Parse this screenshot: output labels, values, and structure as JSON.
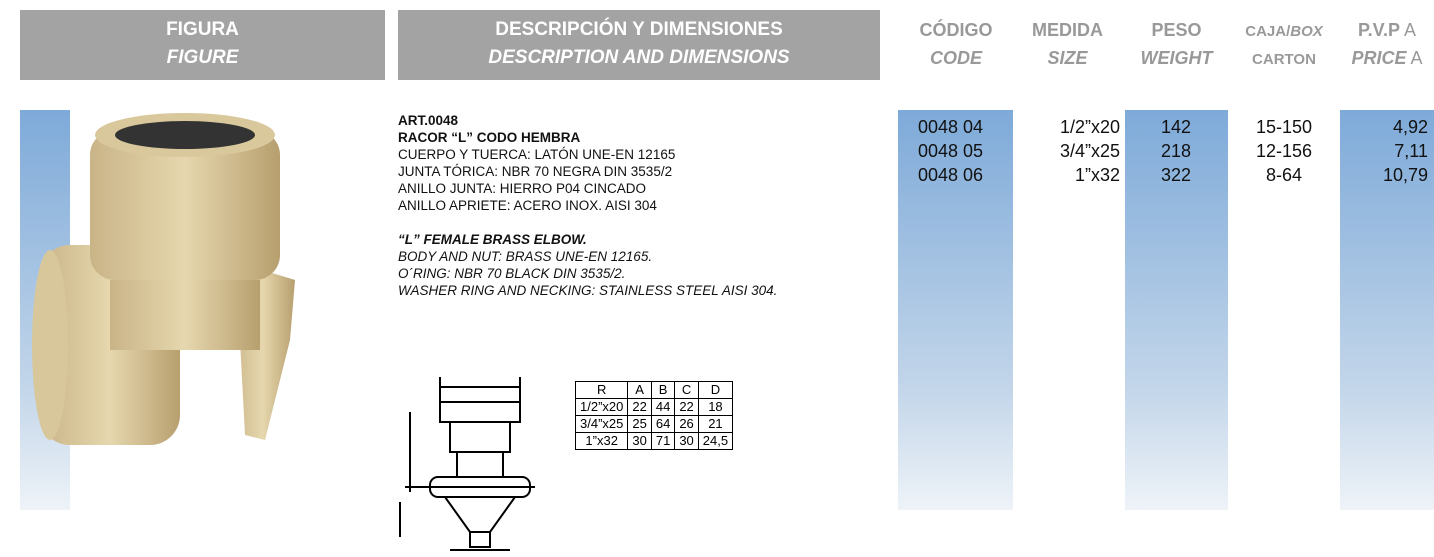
{
  "header": {
    "figure": {
      "es": "FIGURA",
      "en": "FIGURE"
    },
    "description": {
      "es": "DESCRIPCIÓN Y DIMENSIONES",
      "en": "DESCRIPTION AND DIMENSIONS"
    },
    "columns": [
      {
        "es": "CÓDIGO",
        "en": "CODE"
      },
      {
        "es": "MEDIDA",
        "en": "SIZE"
      },
      {
        "es": "PESO",
        "en": "WEIGHT"
      },
      {
        "es": "CAJA/",
        "es_italic": "BOX",
        "en": "CARTON"
      },
      {
        "es": "P.V.P",
        "es_mark": "A",
        "en": "PRICE",
        "en_mark": "A"
      }
    ]
  },
  "description": {
    "article": "ART.0048",
    "title": "RACOR “L” CODO HEMBRA",
    "lines": [
      "CUERPO Y TUERCA: LATÓN UNE-EN 12165",
      "JUNTA TÓRICA: NBR 70 NEGRA DIN 3535/2",
      "ANILLO JUNTA: HIERRO P04 CINCADO",
      "ANILLO APRIETE: ACERO INOX. AISI 304"
    ],
    "title_en": "“L” FEMALE BRASS ELBOW.",
    "lines_en": [
      "BODY AND NUT: BRASS UNE-EN 12165.",
      "O´RING: NBR 70 BLACK DIN 3535/2.",
      "WASHER RING AND NECKING: STAINLESS STEEL AISI 304."
    ]
  },
  "dimensions": {
    "header": [
      "R",
      "A",
      "B",
      "C",
      "D"
    ],
    "rows": [
      [
        "1/2”x20",
        "22",
        "44",
        "22",
        "18"
      ],
      [
        "3/4”x25",
        "25",
        "64",
        "26",
        "21"
      ],
      [
        "1”x32",
        "30",
        "71",
        "30",
        "24,5"
      ]
    ]
  },
  "rows": [
    [
      "0048 04",
      "1/2”x20",
      "142",
      "15-150",
      "4,92"
    ],
    [
      "0048 05",
      "3/4”x25",
      "218",
      "12-156",
      "7,11"
    ],
    [
      "0048 06",
      "1”x32",
      "322",
      "8-64",
      "10,79"
    ]
  ]
}
